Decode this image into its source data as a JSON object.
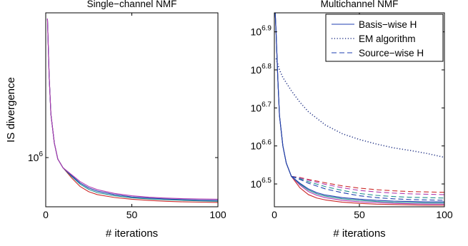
{
  "chart_data": [
    {
      "type": "line",
      "title": "Single−channel NMF",
      "xlabel": "# iterations",
      "ylabel": "IS divergence",
      "xlim": [
        0,
        100
      ],
      "yscale": "log",
      "ylim_log10": [
        5.83,
        6.5
      ],
      "xticks": [
        0,
        50,
        100
      ],
      "yticks": [
        {
          "base": "10",
          "exp": "6",
          "log10": 6.0
        }
      ],
      "grid": false,
      "legend": null,
      "series": [
        {
          "color": "#cc2a2a",
          "style": "solid",
          "x": [
            1,
            2,
            3,
            5,
            7,
            10,
            15,
            20,
            25,
            30,
            40,
            50,
            60,
            70,
            80,
            90,
            100
          ],
          "y": [
            6.48,
            6.28,
            6.15,
            6.05,
            5.995,
            5.965,
            5.93,
            5.9,
            5.882,
            5.872,
            5.862,
            5.856,
            5.852,
            5.849,
            5.847,
            5.846,
            5.845
          ]
        },
        {
          "color": "#1f8f8f",
          "style": "solid",
          "x": [
            1,
            2,
            3,
            5,
            7,
            10,
            15,
            20,
            25,
            30,
            40,
            50,
            60,
            70,
            80,
            90,
            100
          ],
          "y": [
            6.48,
            6.28,
            6.15,
            6.05,
            5.995,
            5.965,
            5.935,
            5.908,
            5.89,
            5.879,
            5.868,
            5.861,
            5.857,
            5.854,
            5.852,
            5.85,
            5.849
          ]
        },
        {
          "color": "#1f3fb0",
          "style": "solid",
          "x": [
            1,
            2,
            3,
            5,
            7,
            10,
            15,
            20,
            25,
            30,
            40,
            50,
            60,
            70,
            80,
            90,
            100
          ],
          "y": [
            6.48,
            6.28,
            6.15,
            6.05,
            5.995,
            5.965,
            5.938,
            5.912,
            5.895,
            5.884,
            5.872,
            5.864,
            5.86,
            5.857,
            5.855,
            5.853,
            5.852
          ]
        },
        {
          "color": "#b03ab0",
          "style": "solid",
          "x": [
            1,
            2,
            3,
            5,
            7,
            10,
            15,
            20,
            25,
            30,
            40,
            50,
            60,
            70,
            80,
            90,
            100
          ],
          "y": [
            6.48,
            6.28,
            6.15,
            6.05,
            5.995,
            5.965,
            5.941,
            5.917,
            5.9,
            5.889,
            5.876,
            5.868,
            5.863,
            5.86,
            5.858,
            5.857,
            5.856
          ]
        }
      ]
    },
    {
      "type": "line",
      "title": "Multichannel NMF",
      "xlabel": "# iterations",
      "ylabel": "",
      "xlim": [
        0,
        100
      ],
      "yscale": "log",
      "ylim_log10": [
        6.44,
        6.95
      ],
      "xticks": [
        0,
        50,
        100
      ],
      "yticks": [
        {
          "base": "10",
          "exp": "6.5",
          "log10": 6.5
        },
        {
          "base": "10",
          "exp": "6.6",
          "log10": 6.6
        },
        {
          "base": "10",
          "exp": "6.7",
          "log10": 6.7
        },
        {
          "base": "10",
          "exp": "6.8",
          "log10": 6.8
        },
        {
          "base": "10",
          "exp": "6.9",
          "log10": 6.9
        }
      ],
      "grid": false,
      "legend": {
        "position": "top-right",
        "entries": [
          {
            "label": "Basis−wise H",
            "color": "#1f3fb0",
            "style": "solid"
          },
          {
            "label": "EM algorithm",
            "color": "#2a3a8a",
            "style": "dotted"
          },
          {
            "label": "Source−wise H",
            "color": "#1f3fb0",
            "style": "dashed"
          }
        ]
      },
      "series": [
        {
          "group": "EM algorithm",
          "color": "#2a3a8a",
          "style": "dotted",
          "x": [
            1,
            3,
            5,
            10,
            15,
            20,
            30,
            40,
            50,
            60,
            70,
            80,
            90,
            100
          ],
          "y": [
            6.83,
            6.8,
            6.78,
            6.745,
            6.715,
            6.69,
            6.655,
            6.632,
            6.617,
            6.605,
            6.595,
            6.588,
            6.58,
            6.57
          ]
        },
        {
          "group": "Source−wise H",
          "color": "#cc2a2a",
          "style": "dashed",
          "x": [
            10,
            15,
            20,
            30,
            40,
            50,
            60,
            70,
            80,
            90,
            100
          ],
          "y": [
            6.52,
            6.517,
            6.512,
            6.503,
            6.495,
            6.489,
            6.485,
            6.482,
            6.48,
            6.479,
            6.478
          ]
        },
        {
          "group": "Source−wise H",
          "color": "#b03ab0",
          "style": "dashed",
          "x": [
            10,
            15,
            20,
            30,
            40,
            50,
            60,
            70,
            80,
            90,
            100
          ],
          "y": [
            6.52,
            6.516,
            6.51,
            6.499,
            6.49,
            6.483,
            6.479,
            6.476,
            6.474,
            6.473,
            6.472
          ]
        },
        {
          "group": "Source−wise H",
          "color": "#1f8f8f",
          "style": "dashed",
          "x": [
            10,
            15,
            20,
            30,
            40,
            50,
            60,
            70,
            80,
            90,
            100
          ],
          "y": [
            6.52,
            6.514,
            6.506,
            6.493,
            6.483,
            6.475,
            6.47,
            6.467,
            6.465,
            6.464,
            6.463
          ]
        },
        {
          "group": "Source−wise H",
          "color": "#1f3fb0",
          "style": "dashed",
          "x": [
            10,
            15,
            20,
            30,
            40,
            50,
            60,
            70,
            80,
            90,
            100
          ],
          "y": [
            6.52,
            6.512,
            6.502,
            6.487,
            6.477,
            6.469,
            6.464,
            6.461,
            6.459,
            6.458,
            6.457
          ]
        },
        {
          "group": "Basis−wise H",
          "color": "#cc2a2a",
          "style": "solid",
          "x": [
            0.5,
            1,
            2,
            3,
            5,
            7,
            10,
            15,
            20,
            25,
            30,
            40,
            50,
            60,
            70,
            80,
            90,
            100
          ],
          "y": [
            6.95,
            6.9,
            6.78,
            6.68,
            6.6,
            6.555,
            6.52,
            6.49,
            6.472,
            6.463,
            6.458,
            6.452,
            6.449,
            6.447,
            6.446,
            6.445,
            6.444,
            6.444
          ]
        },
        {
          "group": "Basis−wise H",
          "color": "#b03ab0",
          "style": "solid",
          "x": [
            0.5,
            1,
            2,
            3,
            5,
            7,
            10,
            15,
            20,
            25,
            30,
            40,
            50,
            60,
            70,
            80,
            90,
            100
          ],
          "y": [
            6.95,
            6.9,
            6.78,
            6.68,
            6.6,
            6.555,
            6.52,
            6.497,
            6.48,
            6.47,
            6.464,
            6.457,
            6.453,
            6.451,
            6.449,
            6.448,
            6.447,
            6.447
          ]
        },
        {
          "group": "Basis−wise H",
          "color": "#1f8f8f",
          "style": "solid",
          "x": [
            0.5,
            1,
            2,
            3,
            5,
            7,
            10,
            15,
            20,
            25,
            30,
            40,
            50,
            60,
            70,
            80,
            90,
            100
          ],
          "y": [
            6.95,
            6.9,
            6.78,
            6.68,
            6.6,
            6.555,
            6.52,
            6.5,
            6.484,
            6.474,
            6.468,
            6.461,
            6.457,
            6.454,
            6.452,
            6.451,
            6.45,
            6.45
          ]
        },
        {
          "group": "Basis−wise H",
          "color": "#1f3fb0",
          "style": "solid",
          "x": [
            0.5,
            1,
            2,
            3,
            5,
            7,
            10,
            15,
            20,
            25,
            30,
            40,
            50,
            60,
            70,
            80,
            90,
            100
          ],
          "y": [
            6.95,
            6.9,
            6.78,
            6.68,
            6.6,
            6.555,
            6.52,
            6.502,
            6.487,
            6.477,
            6.471,
            6.464,
            6.46,
            6.457,
            6.455,
            6.454,
            6.453,
            6.453
          ]
        }
      ]
    }
  ]
}
